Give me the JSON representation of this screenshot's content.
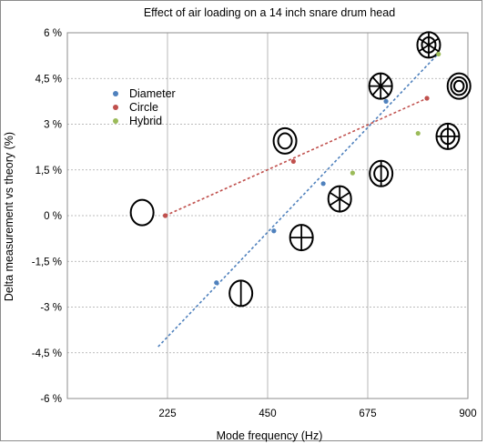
{
  "chart_data": {
    "type": "scatter",
    "title": "Effect of air loading on a 14 inch snare drum head",
    "xlabel": "Mode frequency (Hz)",
    "ylabel": "Delta measurement vs theory (%)",
    "xlim": [
      0,
      900
    ],
    "ylim": [
      -6,
      6
    ],
    "x_ticks": [
      {
        "value": 225,
        "label": "225"
      },
      {
        "value": 450,
        "label": "450"
      },
      {
        "value": 675,
        "label": "675"
      },
      {
        "value": 900,
        "label": "900"
      }
    ],
    "y_ticks": [
      {
        "value": 6,
        "label": "6 %"
      },
      {
        "value": 4.5,
        "label": "4,5 %"
      },
      {
        "value": 3,
        "label": "3 %"
      },
      {
        "value": 1.5,
        "label": "1,5 %"
      },
      {
        "value": 0,
        "label": "0 %"
      },
      {
        "value": -1.5,
        "label": "-1,5 %"
      },
      {
        "value": -3,
        "label": "-3 %"
      },
      {
        "value": -4.5,
        "label": "-4,5 %"
      },
      {
        "value": -6,
        "label": "-6 %"
      }
    ],
    "grid": true,
    "legend_position": "left",
    "series": [
      {
        "name": "Diameter",
        "color": "#4f81bd",
        "points": [
          [
            335,
            -2.2
          ],
          [
            464,
            -0.5
          ],
          [
            575,
            1.05
          ],
          [
            716,
            3.75
          ]
        ],
        "trendline": {
          "from": [
            204,
            -4.3
          ],
          "to": [
            836,
            5.35
          ]
        }
      },
      {
        "name": "Circle",
        "color": "#c0504d",
        "points": [
          [
            220,
            0
          ],
          [
            508,
            1.78
          ],
          [
            808,
            3.85
          ]
        ],
        "trendline": {
          "from": [
            220,
            0
          ],
          "to": [
            808,
            3.85
          ]
        }
      },
      {
        "name": "Hybrid",
        "color": "#9bbb59",
        "points": [
          [
            641,
            1.4
          ],
          [
            788,
            2.7
          ],
          [
            834,
            5.3
          ]
        ]
      }
    ],
    "mode_icons": [
      {
        "kind": "mode-01",
        "x": 168,
        "y": 0.1,
        "circles": 0,
        "diameters": 0
      },
      {
        "kind": "mode-11",
        "x": 390,
        "y": -2.55,
        "circles": 0,
        "diameters": 1
      },
      {
        "kind": "mode-21",
        "x": 526,
        "y": -0.72,
        "circles": 0,
        "diameters": 2
      },
      {
        "kind": "mode-31",
        "x": 612,
        "y": 0.55,
        "circles": 0,
        "diameters": 3
      },
      {
        "kind": "mode-41",
        "x": 704,
        "y": 4.25,
        "circles": 0,
        "diameters": 4
      },
      {
        "kind": "mode-02",
        "x": 489,
        "y": 2.45,
        "circles": 1,
        "diameters": 0
      },
      {
        "kind": "mode-03",
        "x": 880,
        "y": 4.25,
        "circles": 2,
        "diameters": 0
      },
      {
        "kind": "mode-12",
        "x": 705,
        "y": 1.38,
        "circles": 1,
        "diameters": 1
      },
      {
        "kind": "mode-22",
        "x": 855,
        "y": 2.6,
        "circles": 1,
        "diameters": 2
      },
      {
        "kind": "mode-32",
        "x": 812,
        "y": 5.6,
        "circles": 1,
        "diameters": 3
      }
    ]
  }
}
